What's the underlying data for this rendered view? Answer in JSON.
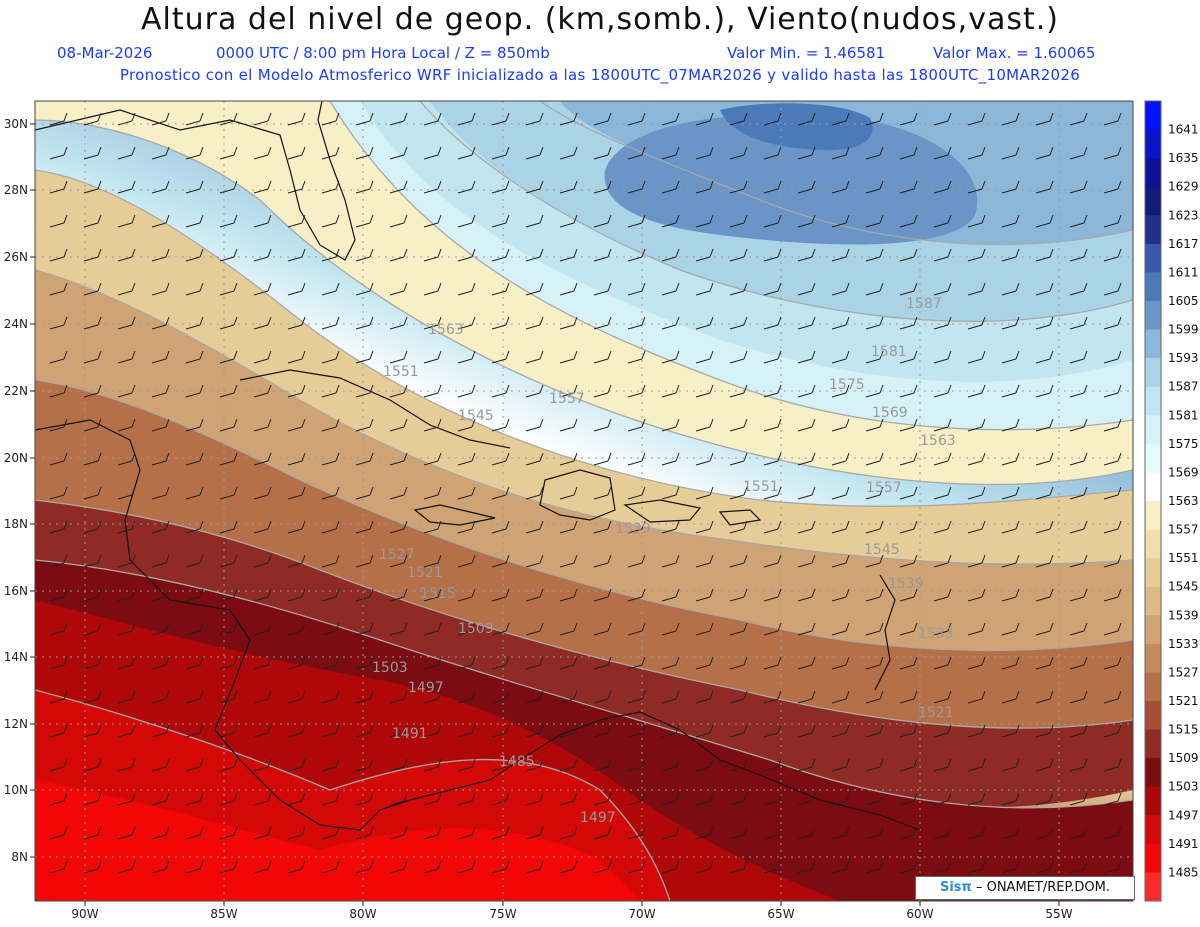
{
  "header": {
    "title": "Altura del nivel de geop. (km,somb.), Viento(nudos,vast.)",
    "date": "08-Mar-2026",
    "time": "0000 UTC / 8:00 pm Hora Local / Z = 850mb",
    "vmin": "Valor Min. = 1.46581",
    "vmax": "Valor Max. = 1.60065",
    "model_line": "Pronostico con el Modelo Atmosferico WRF inicializado a las 1800UTC_07MAR2026 y valido hasta las  1800UTC_10MAR2026"
  },
  "map": {
    "lat_labels": [
      "30N",
      "28N",
      "26N",
      "24N",
      "22N",
      "20N",
      "18N",
      "16N",
      "14N",
      "12N",
      "10N",
      "8N"
    ],
    "lon_labels": [
      "90W",
      "85W",
      "80W",
      "75W",
      "70W",
      "65W",
      "60W",
      "55W"
    ],
    "contour_labels": [
      {
        "text": "1587"
      },
      {
        "text": "1581"
      },
      {
        "text": "1575"
      },
      {
        "text": "1569"
      },
      {
        "text": "1563"
      },
      {
        "text": "1563"
      },
      {
        "text": "1557"
      },
      {
        "text": "1551"
      },
      {
        "text": "1551"
      },
      {
        "text": "1557"
      },
      {
        "text": "1545"
      },
      {
        "text": "1545"
      },
      {
        "text": "1539"
      },
      {
        "text": "1539"
      },
      {
        "text": "1533"
      },
      {
        "text": "1527"
      },
      {
        "text": "1521"
      },
      {
        "text": "1521"
      },
      {
        "text": "1515"
      },
      {
        "text": "1509"
      },
      {
        "text": "1503"
      },
      {
        "text": "1497"
      },
      {
        "text": "1491"
      },
      {
        "text": "1485"
      },
      {
        "text": "1497"
      }
    ]
  },
  "colorbar": {
    "labels": [
      "1641",
      "1635",
      "1629",
      "1623",
      "1617",
      "1611",
      "1605",
      "1599",
      "1593",
      "1587",
      "1581",
      "1575",
      "1569",
      "1563",
      "1557",
      "1551",
      "1545",
      "1539",
      "1533",
      "1527",
      "1521",
      "1515",
      "1509",
      "1503",
      "1497",
      "1491",
      "1485"
    ],
    "colors": [
      "#0011ff",
      "#0a14c8",
      "#0d1196",
      "#141a78",
      "#232d8c",
      "#3a59a8",
      "#4c7ab8",
      "#6a95c6",
      "#8db7d8",
      "#aad4e6",
      "#c2e6f0",
      "#d6f2f7",
      "#e6fbfd",
      "#ffffff",
      "#f7efc6",
      "#efdfae",
      "#e6cd98",
      "#dcb987",
      "#cfa373",
      "#c48b5c",
      "#b67048",
      "#a34e35",
      "#8f2a24",
      "#7d0c12",
      "#a80808",
      "#d50808",
      "#f20606",
      "#ff2a2a"
    ]
  },
  "credit": {
    "brand": "Sisπ",
    "text": "– ONAMET/REP.DOM."
  }
}
